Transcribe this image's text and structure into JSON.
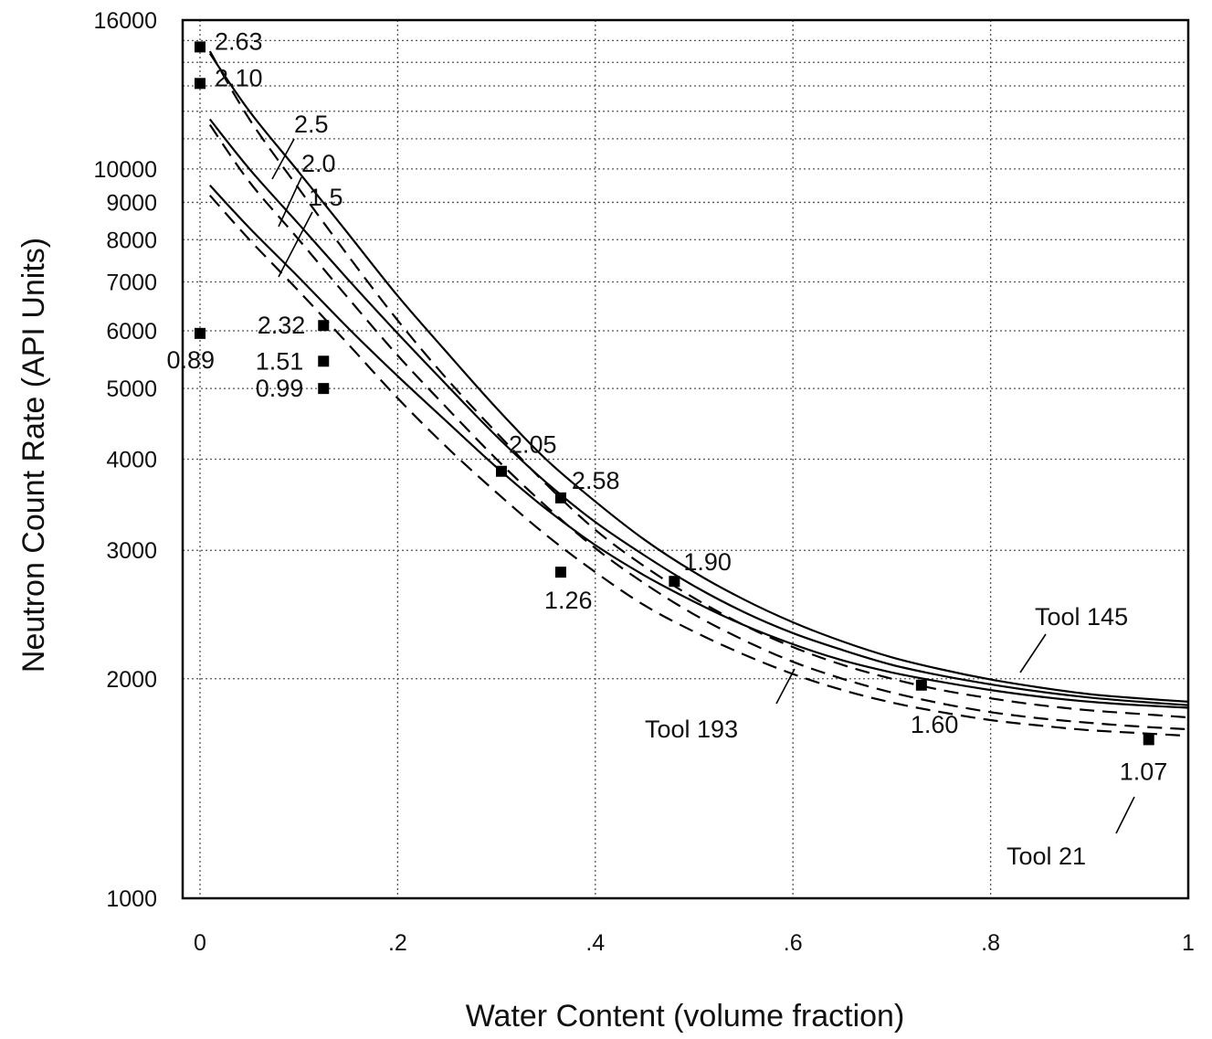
{
  "chart_data": {
    "type": "scatter",
    "title": "",
    "xlabel": "Water Content (volume fraction)",
    "ylabel": "Neutron Count Rate (API Units)",
    "xlim": [
      0,
      1
    ],
    "ylim": [
      1000,
      16000
    ],
    "y_scale": "log",
    "grid": true,
    "x_ticks": [
      0,
      0.2,
      0.4,
      0.6,
      0.8,
      1
    ],
    "x_tick_labels": [
      "0",
      ".2",
      ".4",
      ".6",
      ".8",
      "1"
    ],
    "y_ticks": [
      1000,
      2000,
      3000,
      4000,
      5000,
      6000,
      7000,
      8000,
      9000,
      10000,
      16000
    ],
    "y_tick_labels": [
      "1000",
      "2000",
      "3000",
      "4000",
      "5000",
      "6000",
      "7000",
      "8000",
      "9000",
      "10000",
      "16000"
    ],
    "points": [
      {
        "x": 0.0,
        "y": 14700,
        "label": "2.63"
      },
      {
        "x": 0.0,
        "y": 13100,
        "label": "2.10"
      },
      {
        "x": 0.0,
        "y": 5950,
        "label": "0.89"
      },
      {
        "x": 0.125,
        "y": 6100,
        "label": "2.32"
      },
      {
        "x": 0.125,
        "y": 5450,
        "label": "1.51"
      },
      {
        "x": 0.125,
        "y": 5000,
        "label": "0.99"
      },
      {
        "x": 0.305,
        "y": 3850,
        "label": "2.05"
      },
      {
        "x": 0.365,
        "y": 3540,
        "label": "2.58"
      },
      {
        "x": 0.365,
        "y": 2800,
        "label": "1.26"
      },
      {
        "x": 0.48,
        "y": 2720,
        "label": "1.90"
      },
      {
        "x": 0.73,
        "y": 1960,
        "label": "1.60"
      },
      {
        "x": 0.96,
        "y": 1650,
        "label": "1.07"
      }
    ],
    "series": [
      {
        "name": "2.5",
        "style": "solid",
        "x": [
          0.01,
          0.05,
          0.1,
          0.15,
          0.2,
          0.25,
          0.3,
          0.35,
          0.4,
          0.45,
          0.5,
          0.55,
          0.6,
          0.65,
          0.7,
          0.75,
          0.8,
          0.85,
          0.9,
          0.95,
          1.0
        ],
        "y": [
          14400,
          12000,
          9900,
          8150,
          6700,
          5600,
          4700,
          4000,
          3500,
          3100,
          2800,
          2570,
          2390,
          2250,
          2140,
          2060,
          1995,
          1945,
          1905,
          1880,
          1860
        ]
      },
      {
        "name": "2.0",
        "style": "solid",
        "x": [
          0.01,
          0.05,
          0.1,
          0.15,
          0.2,
          0.25,
          0.3,
          0.35,
          0.4,
          0.45,
          0.5,
          0.55,
          0.6,
          0.65,
          0.7,
          0.75,
          0.8,
          0.85,
          0.9,
          0.95,
          1.0
        ],
        "y": [
          11700,
          10000,
          8400,
          7050,
          5950,
          5050,
          4300,
          3720,
          3280,
          2950,
          2680,
          2470,
          2310,
          2190,
          2090,
          2020,
          1965,
          1920,
          1885,
          1860,
          1840
        ]
      },
      {
        "name": "1.5",
        "style": "solid",
        "x": [
          0.01,
          0.05,
          0.1,
          0.15,
          0.2,
          0.25,
          0.3,
          0.35,
          0.4,
          0.45,
          0.5,
          0.55,
          0.6,
          0.65,
          0.7,
          0.75,
          0.8,
          0.85,
          0.9,
          0.95,
          1.0
        ],
        "y": [
          9500,
          8300,
          7100,
          6050,
          5200,
          4500,
          3900,
          3420,
          3050,
          2770,
          2550,
          2370,
          2230,
          2120,
          2040,
          1980,
          1930,
          1890,
          1860,
          1840,
          1825
        ]
      },
      {
        "name": "",
        "style": "dashed",
        "x": [
          0.01,
          0.05,
          0.1,
          0.15,
          0.2,
          0.25,
          0.3,
          0.35,
          0.4,
          0.45,
          0.5,
          0.55,
          0.6,
          0.65,
          0.7,
          0.75,
          0.8,
          0.85,
          0.9,
          0.95,
          1.0
        ],
        "y": [
          14500,
          11700,
          9400,
          7600,
          6200,
          5150,
          4350,
          3700,
          3200,
          2850,
          2580,
          2370,
          2210,
          2090,
          2000,
          1930,
          1880,
          1840,
          1810,
          1790,
          1770
        ]
      },
      {
        "name": "",
        "style": "dashed",
        "x": [
          0.01,
          0.05,
          0.1,
          0.15,
          0.2,
          0.25,
          0.3,
          0.35,
          0.4,
          0.45,
          0.5,
          0.55,
          0.6,
          0.65,
          0.7,
          0.75,
          0.8,
          0.85,
          0.9,
          0.95,
          1.0
        ],
        "y": [
          11500,
          9600,
          8000,
          6650,
          5550,
          4700,
          4000,
          3450,
          3020,
          2700,
          2450,
          2260,
          2110,
          2000,
          1915,
          1850,
          1800,
          1765,
          1740,
          1720,
          1705
        ]
      },
      {
        "name": "",
        "style": "dashed",
        "x": [
          0.01,
          0.05,
          0.1,
          0.15,
          0.2,
          0.25,
          0.3,
          0.35,
          0.4,
          0.45,
          0.5,
          0.55,
          0.6,
          0.65,
          0.7,
          0.75,
          0.8,
          0.85,
          0.9,
          0.95,
          1.0
        ],
        "y": [
          9200,
          8000,
          6800,
          5750,
          4850,
          4150,
          3600,
          3150,
          2800,
          2520,
          2320,
          2160,
          2030,
          1930,
          1855,
          1800,
          1755,
          1725,
          1700,
          1685,
          1670
        ]
      }
    ],
    "annotations": [
      {
        "text": "2.5",
        "x": 0.24,
        "y": 11500
      },
      {
        "text": "2.0",
        "x": 0.31,
        "y": 10500
      },
      {
        "text": "1.5",
        "x": 0.31,
        "y": 9200
      },
      {
        "text": "Tool 145",
        "x": 0.93,
        "y": 2450
      },
      {
        "text": "Tool 193",
        "x": 0.58,
        "y": 1830
      },
      {
        "text": "Tool 21",
        "x": 0.92,
        "y": 1250
      }
    ]
  }
}
